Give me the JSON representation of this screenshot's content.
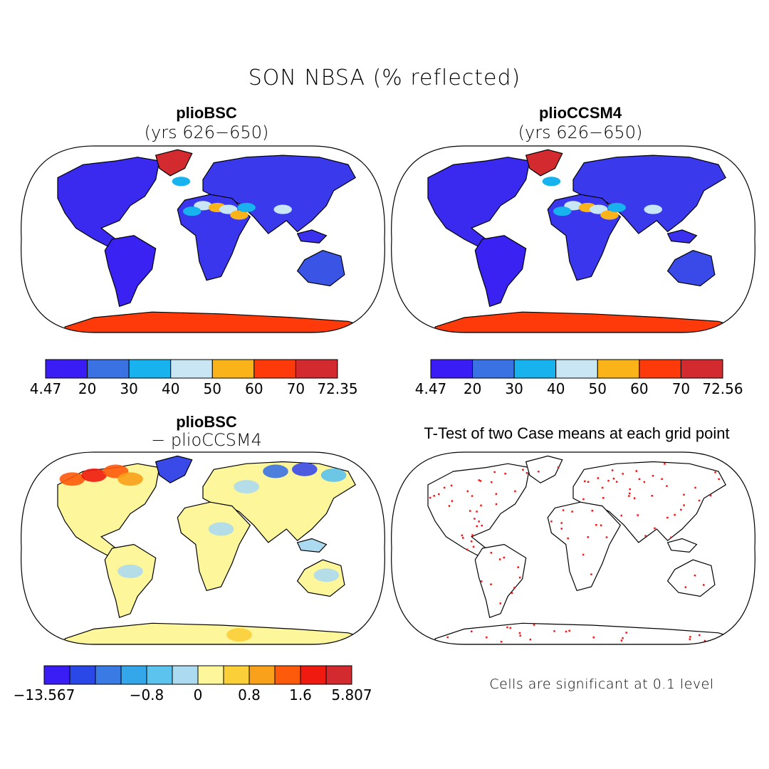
{
  "title": "SON NBSA (% reflected)",
  "panels": [
    {
      "id": "plioBSC",
      "title": "plioBSC",
      "subtitle": "(yrs 626−650)",
      "colorbar": {
        "colors": [
          "#3a1cf5",
          "#3a72e4",
          "#18b2ef",
          "#c8e6f4",
          "#fbb31a",
          "#ff3a0a",
          "#d22a2e"
        ],
        "labels": [
          "4.47",
          "20",
          "30",
          "40",
          "50",
          "60",
          "70",
          "72.35"
        ]
      }
    },
    {
      "id": "plioCCSM4",
      "title": "plioCCSM4",
      "subtitle": "(yrs 626−650)",
      "colorbar": {
        "colors": [
          "#3a1cf5",
          "#3a72e4",
          "#18b2ef",
          "#c8e6f4",
          "#fbb31a",
          "#ff3a0a",
          "#d22a2e"
        ],
        "labels": [
          "4.47",
          "20",
          "30",
          "40",
          "50",
          "60",
          "70",
          "72.56"
        ]
      }
    },
    {
      "id": "difference",
      "title": "plioBSC",
      "subtitle": "− plioCCSM4",
      "colorbar": {
        "colors": [
          "#3a1cf5",
          "#2a48e8",
          "#3a7ae4",
          "#34a6ea",
          "#5cc2ee",
          "#acdaf0",
          "#fdf69a",
          "#fbcf38",
          "#f9a11a",
          "#fe5a0c",
          "#f01a10",
          "#d22a2e"
        ],
        "labels": [
          "−13.567",
          "−0.8",
          "0",
          "0.8",
          "1.6",
          "5.807"
        ]
      }
    },
    {
      "id": "ttest",
      "title": "T-Test of two Case means at each grid point",
      "note": "Cells are significant at 0.1 level"
    }
  ]
}
